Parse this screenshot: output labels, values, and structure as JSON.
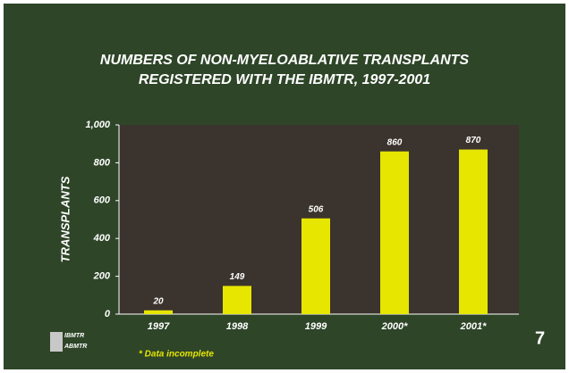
{
  "chart_data": {
    "type": "bar",
    "title": [
      "NUMBERS OF NON-MYELOABLATIVE TRANSPLANTS",
      "REGISTERED WITH THE IBMTR, 1997-2001"
    ],
    "y_label": "TRANSPLANTS",
    "categories": [
      "1997",
      "1998",
      "1999",
      "2000*",
      "2001*"
    ],
    "values": [
      20,
      149,
      506,
      860,
      870
    ],
    "color": "#e6e600",
    "ylim": [
      0,
      1000
    ],
    "yticks": [
      0,
      200,
      400,
      600,
      800,
      {
        "value": 1000,
        "label": "1,000"
      }
    ],
    "footnote": "* Data incomplete",
    "page_number": "7",
    "logo": [
      "IBMTR",
      "ABMTR"
    ]
  }
}
